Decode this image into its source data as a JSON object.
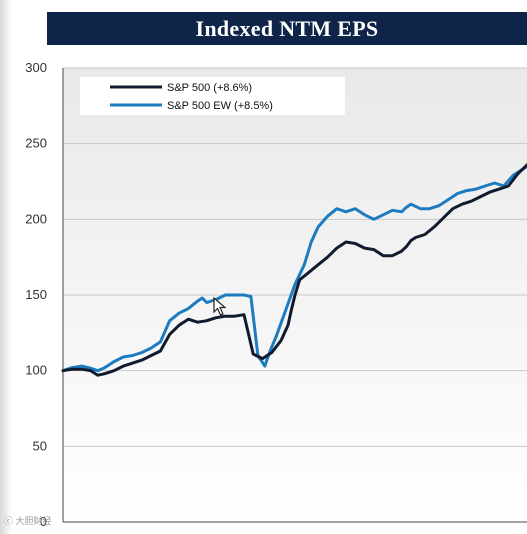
{
  "chart_data": {
    "type": "line",
    "title": "Indexed NTM EPS",
    "xlabel": "",
    "ylabel": "",
    "ylim": [
      0,
      300
    ],
    "yticks": [
      0,
      50,
      100,
      150,
      200,
      250,
      300
    ],
    "xlim": [
      0,
      100
    ],
    "grid": true,
    "legend_position": "top-left",
    "series": [
      {
        "name": "S&P 500 (+8.6%)",
        "color": "#111b2e",
        "x": [
          0,
          2,
          4,
          6,
          7.5,
          9,
          11,
          13,
          15,
          17,
          19,
          21,
          23,
          25,
          27,
          29,
          31,
          33,
          35,
          37,
          39,
          41,
          43,
          45,
          47,
          48.5,
          49.2,
          50,
          51,
          53,
          55,
          57,
          59,
          61,
          63,
          65,
          67,
          69,
          71,
          73,
          74,
          75,
          76,
          78,
          80,
          82,
          84,
          86,
          88,
          90,
          92,
          94,
          96,
          98,
          100
        ],
        "values": [
          100,
          101,
          101,
          100,
          97,
          98,
          100,
          103,
          105,
          107,
          110,
          113,
          124,
          130,
          134,
          132,
          133,
          135,
          136,
          136,
          137,
          111,
          108,
          112,
          120,
          130,
          140,
          150,
          160,
          165,
          170,
          175,
          181,
          185,
          184,
          181,
          180,
          176,
          176,
          179,
          182,
          186,
          188,
          190,
          195,
          201,
          207,
          210,
          212,
          215,
          218,
          220,
          222,
          230,
          236
        ]
      },
      {
        "name": "S&P 500 EW (+8.5%)",
        "color": "#1d7bc0",
        "x": [
          0,
          2,
          4,
          5.5,
          7.5,
          9,
          11,
          13,
          15,
          17,
          19,
          21,
          23,
          25,
          27,
          29,
          30,
          31,
          33,
          35,
          37,
          39,
          40.5,
          42,
          43.5,
          44.5,
          46,
          48,
          50,
          52,
          53.5,
          55,
          57,
          59,
          61,
          63,
          65,
          67,
          69,
          71,
          73,
          74,
          75,
          77,
          79,
          81,
          83,
          85,
          87,
          89,
          91,
          93,
          95,
          97,
          99,
          100
        ],
        "values": [
          100,
          102,
          103,
          102,
          100,
          102,
          106,
          109,
          110,
          112,
          115,
          119,
          133,
          138,
          141,
          146,
          148,
          145,
          147,
          150,
          150,
          150,
          149,
          110,
          103,
          112,
          123,
          140,
          157,
          170,
          185,
          195,
          202,
          207,
          205,
          207,
          203,
          200,
          203,
          206,
          205,
          208,
          210,
          207,
          207,
          209,
          213,
          217,
          219,
          220,
          222,
          224,
          222,
          229,
          233,
          235
        ]
      }
    ]
  },
  "watermark": "ⓒ 大胆财经",
  "colors": {
    "title_bar": "#0e2549",
    "gridline": "#c8c8c8",
    "axis": "#444444"
  },
  "cursor_icon": "arrow-cursor-icon"
}
